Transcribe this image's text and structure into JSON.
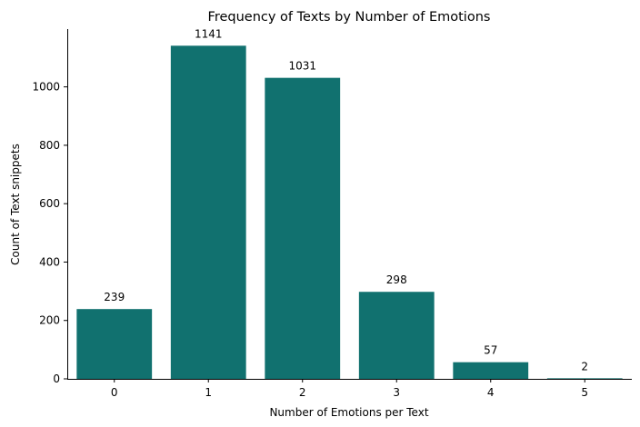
{
  "chart_data": {
    "type": "bar",
    "title": "Frequency of Texts by Number of Emotions",
    "xlabel": "Number of Emotions per Text",
    "ylabel": "Count of Text snippets",
    "categories": [
      "0",
      "1",
      "2",
      "3",
      "4",
      "5"
    ],
    "values": [
      239,
      1141,
      1031,
      298,
      57,
      2
    ],
    "data_labels": [
      "239",
      "1141",
      "1031",
      "298",
      "57",
      "2"
    ],
    "yticks": [
      0,
      200,
      400,
      600,
      800,
      1000
    ],
    "ylim": [
      0,
      1198
    ],
    "bar_color": "#11716f",
    "grid": false,
    "legend": "none"
  }
}
